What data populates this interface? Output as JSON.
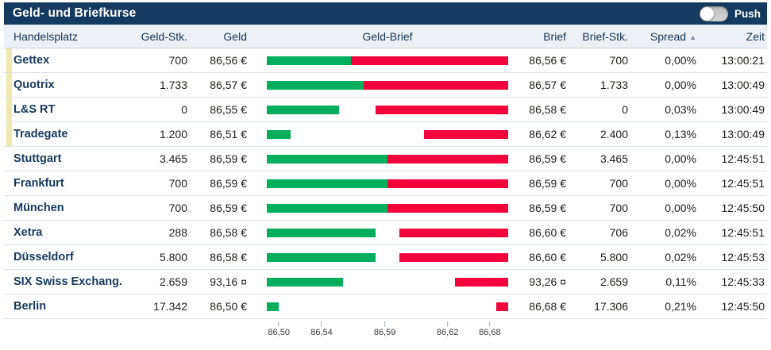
{
  "widget": {
    "title": "Geld- und Briefkurse",
    "push_label": "Push",
    "push_state": "off",
    "sort_arrow_icon": "▲"
  },
  "colors": {
    "navy": "#143a5f",
    "bid_green": "#00ae5c",
    "ask_red": "#f4043c",
    "flag_yellow": "#efe9b0"
  },
  "table": {
    "columns": [
      "Handelsplatz",
      "Geld-Stk.",
      "Geld",
      "Geld-Brief",
      "Brief",
      "Brief-Stk.",
      "Spread",
      "Zeit"
    ],
    "sorted_by": "Spread",
    "sort_direction": "ascending",
    "rows": [
      {
        "venue": "Gettex",
        "flag": true,
        "geld_stk": "700",
        "geld": "86,56 €",
        "brief": "86,56 €",
        "brief_stk": "700",
        "spread": "0,00%",
        "zeit": "13:00:21",
        "bid_pct": 35,
        "ask_pct": 35
      },
      {
        "venue": "Quotrix",
        "flag": true,
        "geld_stk": "1.733",
        "geld": "86,57 €",
        "brief": "86,57 €",
        "brief_stk": "1.733",
        "spread": "0,00%",
        "zeit": "13:00:49",
        "bid_pct": 40,
        "ask_pct": 40
      },
      {
        "venue": "L&S RT",
        "flag": true,
        "geld_stk": "0",
        "geld": "86,55 €",
        "brief": "86,58 €",
        "brief_stk": "0",
        "spread": "0,03%",
        "zeit": "13:00:49",
        "bid_pct": 30,
        "ask_pct": 45
      },
      {
        "venue": "Tradegate",
        "flag": true,
        "geld_stk": "1.200",
        "geld": "86,51 €",
        "brief": "86,62 €",
        "brief_stk": "2.400",
        "spread": "0,13%",
        "zeit": "13:00:49",
        "bid_pct": 10,
        "ask_pct": 65
      },
      {
        "venue": "Stuttgart",
        "flag": false,
        "geld_stk": "3.465",
        "geld": "86,59 €",
        "brief": "86,59 €",
        "brief_stk": "3.465",
        "spread": "0,00%",
        "zeit": "12:45:51",
        "bid_pct": 50,
        "ask_pct": 50
      },
      {
        "venue": "Frankfurt",
        "flag": false,
        "geld_stk": "700",
        "geld": "86,59 €",
        "brief": "86,59 €",
        "brief_stk": "700",
        "spread": "0,00%",
        "zeit": "12:45:51",
        "bid_pct": 50,
        "ask_pct": 50
      },
      {
        "venue": "München",
        "flag": false,
        "geld_stk": "700",
        "geld": "86,59 €",
        "brief": "86,59 €",
        "brief_stk": "700",
        "spread": "0,00%",
        "zeit": "12:45:50",
        "bid_pct": 50,
        "ask_pct": 50
      },
      {
        "venue": "Xetra",
        "flag": false,
        "geld_stk": "288",
        "geld": "86,58 €",
        "brief": "86,60 €",
        "brief_stk": "706",
        "spread": "0,02%",
        "zeit": "12:45:51",
        "bid_pct": 45,
        "ask_pct": 55
      },
      {
        "venue": "Düsseldorf",
        "flag": false,
        "geld_stk": "5.800",
        "geld": "86,58 €",
        "brief": "86,60 €",
        "brief_stk": "5.800",
        "spread": "0,02%",
        "zeit": "12:45:53",
        "bid_pct": 45,
        "ask_pct": 55
      },
      {
        "venue": "SIX Swiss Exchang.",
        "flag": false,
        "geld_stk": "2.659",
        "geld": "93,16 ¤",
        "brief": "93,26 ¤",
        "brief_stk": "2.659",
        "spread": "0,11%",
        "zeit": "12:45:33",
        "bid_pct": 31.5,
        "ask_pct": 78
      },
      {
        "venue": "Berlin",
        "flag": false,
        "geld_stk": "17.342",
        "geld": "86,50 €",
        "brief": "86,68 €",
        "brief_stk": "17.306",
        "spread": "0,21%",
        "zeit": "12:45:50",
        "bid_pct": 5,
        "ask_pct": 95
      }
    ]
  },
  "chart_data": {
    "type": "bar",
    "subtype": "horizontal-bid-ask-range",
    "title": "Geld-Brief",
    "venues": [
      "Gettex",
      "Quotrix",
      "L&S RT",
      "Tradegate",
      "Stuttgart",
      "Frankfurt",
      "München",
      "Xetra",
      "Düsseldorf",
      "SIX Swiss Exchang.",
      "Berlin"
    ],
    "bid_values": [
      86.56,
      86.57,
      86.55,
      86.51,
      86.59,
      86.59,
      86.59,
      86.58,
      86.58,
      93.16,
      86.5
    ],
    "ask_values": [
      86.56,
      86.57,
      86.58,
      86.62,
      86.59,
      86.59,
      86.59,
      86.6,
      86.6,
      93.26,
      86.68
    ],
    "axis_ticks": [
      {
        "label": "86,50",
        "pct": 5
      },
      {
        "label": "86,54",
        "pct": 22.7
      },
      {
        "label": "86,59",
        "pct": 48.9
      },
      {
        "label": "86,62",
        "pct": 74.9
      },
      {
        "label": "86,68",
        "pct": 92.4
      }
    ],
    "legend": "green bar = Geld (bid) from scale min to bid price; red bar = Brief (ask) from ask price to scale max",
    "grid": false
  }
}
